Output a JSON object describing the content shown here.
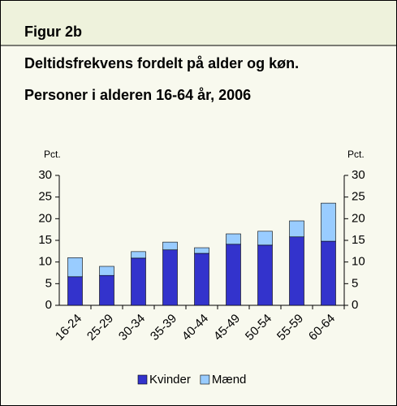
{
  "header": "Figur 2b",
  "chart_data": {
    "type": "stacked_bar",
    "title": "Deltidsfrekvens fordelt på alder og køn.",
    "subtitle": "Personer i alderen 16-64 år, 2006",
    "y_label": "Pct.",
    "y2_label": "Pct.",
    "categories": [
      "16-24",
      "25-29",
      "30-34",
      "35-39",
      "40-44",
      "45-49",
      "50-54",
      "55-59",
      "60-64"
    ],
    "series": [
      {
        "name": "Kvinder",
        "color": "#3333cc",
        "values": [
          6.6,
          6.9,
          10.9,
          12.8,
          12.0,
          14.1,
          13.9,
          15.8,
          14.8
        ]
      },
      {
        "name": "Mænd",
        "color": "#99ccff",
        "values": [
          4.4,
          2.1,
          1.5,
          1.8,
          1.3,
          2.4,
          3.2,
          3.7,
          8.8
        ]
      }
    ],
    "ylim": [
      0,
      30
    ],
    "yticks": [
      0,
      5,
      10,
      15,
      20,
      25,
      30
    ],
    "y2lim": [
      0,
      30
    ],
    "y2ticks": [
      0,
      5,
      10,
      15,
      20,
      25,
      30
    ],
    "legend": "bottom"
  }
}
